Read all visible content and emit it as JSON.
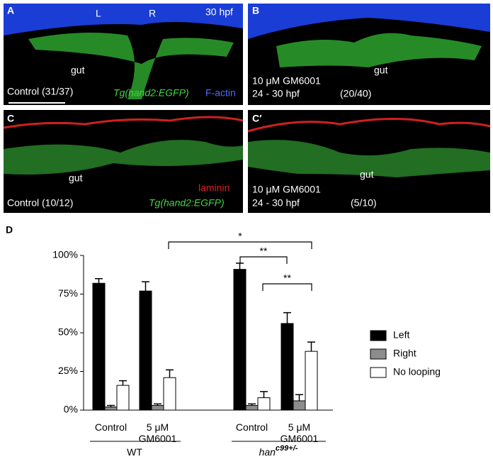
{
  "images": [
    {
      "label": "A",
      "texts": [
        "L",
        "R",
        "30 hpf",
        "gut",
        "Control (31/37)"
      ],
      "marker": "Tg(hand2:EGFP)",
      "stain": "F-actin"
    },
    {
      "label": "B",
      "texts": [
        "gut",
        "10 μM GM6001",
        "24 - 30 hpf",
        "(20/40)"
      ]
    },
    {
      "label": "C",
      "texts": [
        "gut",
        "Control (10/12)"
      ],
      "stain": "laminin",
      "marker": "Tg(hand2:EGFP)"
    },
    {
      "label": "C′",
      "texts": [
        "gut",
        "10 μM GM6001",
        "24 - 30 hpf",
        "(5/10)"
      ]
    }
  ],
  "chart_data": {
    "type": "bar",
    "panel_label": "D",
    "categories": [
      "Control",
      "5 μM GM6001",
      "Control",
      "5 μM GM6001"
    ],
    "groups": [
      {
        "label": "WT"
      },
      {
        "label": "han",
        "superscript": "c99+/-"
      }
    ],
    "series": [
      {
        "name": "Left",
        "color": "#000000",
        "values": [
          82,
          77,
          91,
          56
        ],
        "errors": [
          3,
          6,
          4,
          7
        ]
      },
      {
        "name": "Right",
        "color": "#8c8c8c",
        "values": [
          2,
          3,
          3,
          6
        ],
        "errors": [
          1,
          1,
          1,
          4
        ]
      },
      {
        "name": "No looping",
        "color": "#ffffff",
        "values": [
          16,
          21,
          8,
          38
        ],
        "errors": [
          3,
          5,
          4,
          6
        ]
      }
    ],
    "significance": [
      "*",
      "**",
      "**"
    ],
    "ylim": [
      0,
      100
    ],
    "yticks": [
      {
        "value": 0,
        "label": "0%"
      },
      {
        "value": 25,
        "label": "25%"
      },
      {
        "value": 50,
        "label": "50%"
      },
      {
        "value": 75,
        "label": "75%"
      },
      {
        "value": 100,
        "label": "100%"
      }
    ]
  }
}
